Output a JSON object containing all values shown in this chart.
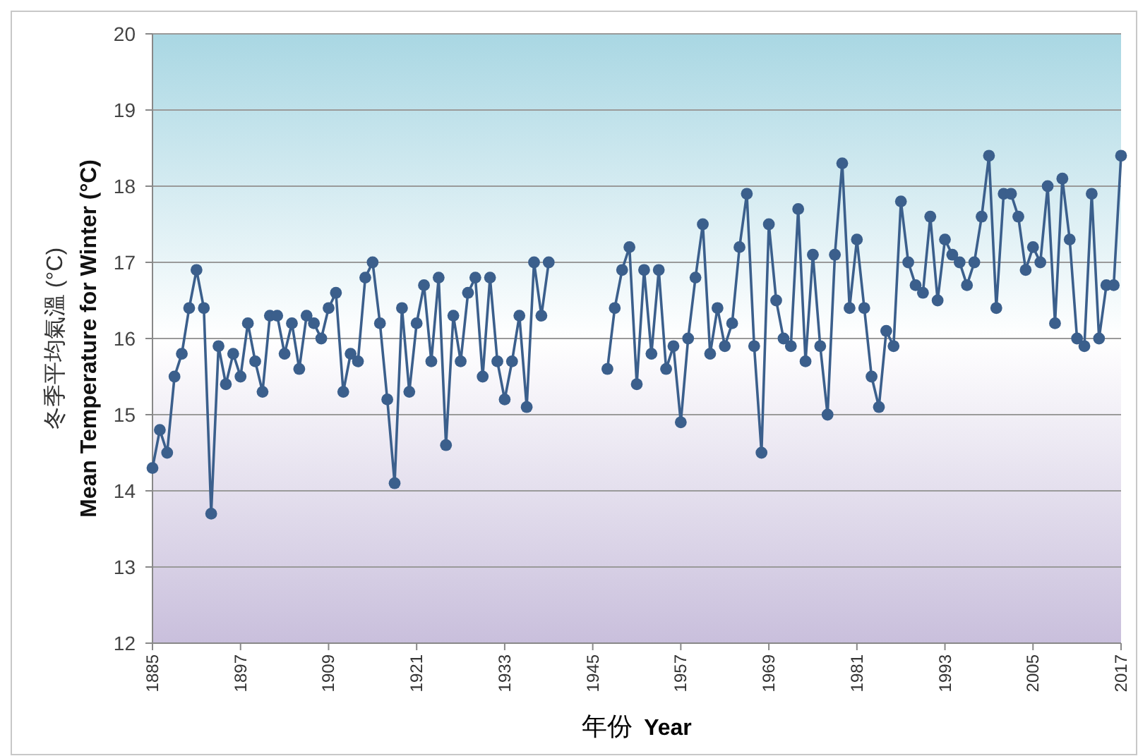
{
  "chart_data": {
    "type": "line",
    "xlabel": "年份 Year",
    "ylabel": "冬季平均氣溫 (°C)\nMean Temperature for Winter (°C)",
    "series": [
      {
        "color": "#3b5f8c",
        "x": [
          1885,
          1886,
          1887,
          1888,
          1889,
          1890,
          1891,
          1892,
          1893,
          1894,
          1895,
          1896,
          1897,
          1898,
          1899,
          1900,
          1901,
          1902,
          1903,
          1904,
          1905,
          1906,
          1907,
          1908,
          1909,
          1910,
          1911,
          1912,
          1913,
          1914,
          1915,
          1916,
          1917,
          1918,
          1919,
          1920,
          1921,
          1922,
          1923,
          1924,
          1925,
          1926,
          1927,
          1928,
          1929,
          1930,
          1931,
          1932,
          1933,
          1934,
          1935,
          1936,
          1937,
          1938,
          1939
        ],
        "values": [
          14.3,
          14.8,
          14.5,
          15.5,
          15.8,
          16.4,
          16.9,
          16.4,
          13.7,
          15.9,
          15.4,
          15.8,
          15.5,
          16.2,
          15.7,
          15.3,
          16.3,
          16.3,
          15.8,
          16.2,
          15.6,
          16.3,
          16.2,
          16.0,
          16.4,
          16.6,
          15.3,
          15.8,
          15.7,
          16.8,
          17.0,
          16.2,
          15.2,
          14.1,
          16.4,
          15.3,
          16.2,
          16.7,
          15.7,
          16.8,
          14.6,
          16.3,
          15.7,
          16.6,
          16.8,
          15.5,
          16.8,
          15.7,
          15.2,
          15.7,
          16.3,
          15.1,
          17.0,
          16.3,
          17.0
        ]
      },
      {
        "color": "#3b5f8c",
        "x": [
          1947,
          1948,
          1949,
          1950,
          1951,
          1952,
          1953,
          1954,
          1955,
          1956,
          1957,
          1958,
          1959,
          1960,
          1961,
          1962,
          1963,
          1964,
          1965,
          1966,
          1967,
          1968,
          1969,
          1970,
          1971,
          1972,
          1973,
          1974,
          1975,
          1976,
          1977,
          1978,
          1979,
          1980,
          1981,
          1982,
          1983,
          1984,
          1985,
          1986,
          1987,
          1988,
          1989,
          1990,
          1991,
          1992,
          1993,
          1994,
          1995,
          1996,
          1997,
          1998,
          1999,
          2000,
          2001,
          2002,
          2003,
          2004,
          2005,
          2006,
          2007,
          2008,
          2009,
          2010,
          2011,
          2012,
          2013,
          2014,
          2015,
          2016,
          2017
        ],
        "values": [
          15.6,
          16.4,
          16.9,
          17.2,
          15.4,
          16.9,
          15.8,
          16.9,
          15.6,
          15.9,
          14.9,
          16.0,
          16.8,
          17.5,
          15.8,
          16.4,
          15.9,
          16.2,
          17.2,
          17.9,
          15.9,
          14.5,
          17.5,
          16.5,
          16.0,
          15.9,
          17.7,
          15.7,
          17.1,
          15.9,
          15.0,
          17.1,
          18.3,
          16.4,
          17.3,
          16.4,
          15.5,
          15.1,
          16.1,
          15.9,
          17.8,
          17.0,
          16.7,
          16.6,
          17.6,
          16.5,
          17.3,
          17.1,
          17.0,
          16.7,
          17.0,
          17.6,
          18.4,
          16.4,
          17.9,
          17.9,
          17.6,
          16.9,
          17.2,
          17.0,
          18.0,
          16.2,
          18.1,
          17.3,
          16.0,
          15.9,
          17.9,
          16.0,
          16.7,
          16.7,
          18.4
        ]
      }
    ],
    "xlim": [
      1885,
      2017
    ],
    "xticks": [
      1885,
      1897,
      1909,
      1921,
      1933,
      1945,
      1957,
      1969,
      1981,
      1993,
      2005,
      2017
    ],
    "ylim": [
      12,
      20
    ],
    "yticks": [
      12,
      13,
      14,
      15,
      16,
      17,
      18,
      19,
      20
    ],
    "grid": "y",
    "marker": "circle",
    "line_style": "solid"
  }
}
